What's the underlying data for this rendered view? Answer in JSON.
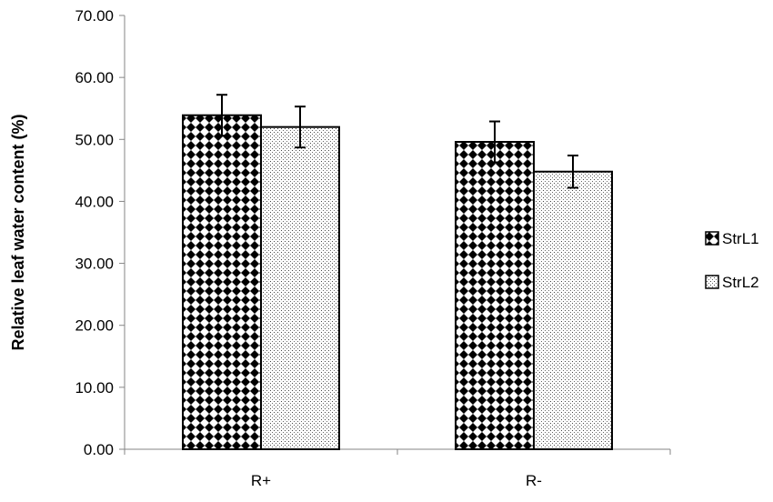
{
  "chart_data": {
    "type": "bar",
    "categories": [
      "R+",
      "R-"
    ],
    "series": [
      {
        "name": "StrL1",
        "values": [
          53.9,
          49.6
        ],
        "errors": [
          3.3,
          3.3
        ],
        "pattern": "checker"
      },
      {
        "name": "StrL2",
        "values": [
          52.0,
          44.8
        ],
        "errors": [
          3.3,
          2.6
        ],
        "pattern": "dots"
      }
    ],
    "xlabel": "",
    "ylabel": "Relative leaf water content (%)",
    "ylim": [
      0,
      70
    ],
    "yticks": [
      "0.00",
      "10.00",
      "20.00",
      "30.00",
      "40.00",
      "50.00",
      "60.00",
      "70.00"
    ],
    "grid": false,
    "legend_position": "right",
    "colors": {
      "bar_stroke": "#000000",
      "background": "#ffffff"
    }
  }
}
